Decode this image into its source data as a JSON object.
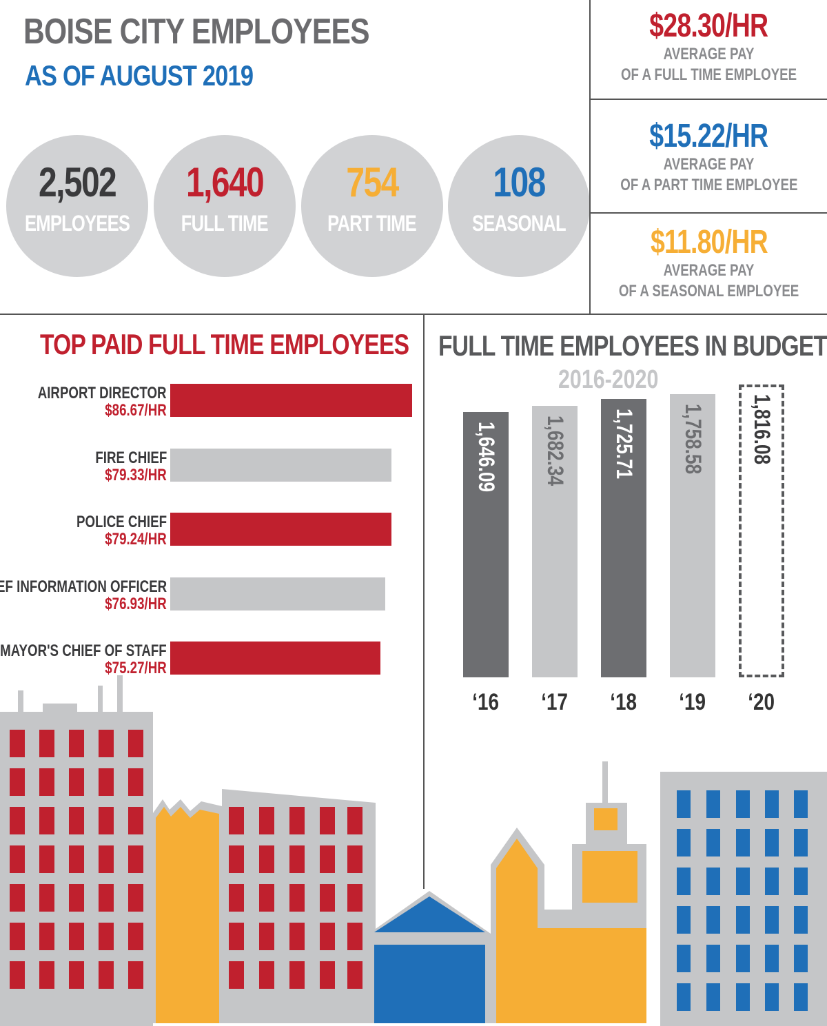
{
  "header": {
    "title": "BOISE CITY EMPLOYEES",
    "subtitle": "AS OF AUGUST 2019"
  },
  "counts": [
    {
      "value": "2,502",
      "label": "EMPLOYEES",
      "color": "#3a3a3c"
    },
    {
      "value": "1,640",
      "label": "FULL TIME",
      "color": "#c0202e"
    },
    {
      "value": "754",
      "label": "PART TIME",
      "color": "#f6ae35"
    },
    {
      "value": "108",
      "label": "SEASONAL",
      "color": "#1f6fb8"
    }
  ],
  "pay": [
    {
      "rate": "$28.30/HR",
      "line1": "AVERAGE PAY",
      "line2": "OF A FULL TIME EMPLOYEE",
      "color": "#c0202e"
    },
    {
      "rate": "$15.22/HR",
      "line1": "AVERAGE PAY",
      "line2": "OF A PART TIME EMPLOYEE",
      "color": "#1f6fb8"
    },
    {
      "rate": "$11.80/HR",
      "line1": "AVERAGE PAY",
      "line2": "OF A SEASONAL EMPLOYEE",
      "color": "#f6ae35"
    }
  ],
  "chart_data": [
    {
      "type": "bar",
      "orientation": "horizontal",
      "title": "TOP PAID FULL TIME EMPLOYEES",
      "categories": [
        "AIRPORT DIRECTOR",
        "FIRE CHIEF",
        "POLICE CHIEF",
        "CHIEF INFORMATION OFFICER",
        "MAYOR'S CHIEF OF STAFF"
      ],
      "value_labels": [
        "$86.67/HR",
        "$79.33/HR",
        "$79.24/HR",
        "$76.93/HR",
        "$75.27/HR"
      ],
      "values": [
        86.67,
        79.33,
        79.24,
        76.93,
        75.27
      ],
      "colors": [
        "#c0202e",
        "#c5c6c8",
        "#c0202e",
        "#c5c6c8",
        "#c0202e"
      ],
      "unit": "$/HR",
      "xlim": [
        0,
        86.67
      ]
    },
    {
      "type": "bar",
      "orientation": "vertical",
      "title": "FULL TIME EMPLOYEES IN BUDGET*",
      "subtitle": "2016-2020",
      "categories": [
        "‘16",
        "‘17",
        "‘18",
        "‘19",
        "‘20"
      ],
      "values": [
        1646.09,
        1682.34,
        1725.71,
        1758.58,
        1816.08
      ],
      "value_labels": [
        "1,646.09",
        "1,682.34",
        "1,725.71",
        "1,758.58",
        "1,816.08"
      ],
      "colors": [
        "#6d6e71",
        "#c5c6c8",
        "#6d6e71",
        "#c5c6c8",
        "none"
      ],
      "projected": [
        false,
        false,
        false,
        false,
        true
      ],
      "ylim": [
        0,
        1816.08
      ]
    }
  ]
}
